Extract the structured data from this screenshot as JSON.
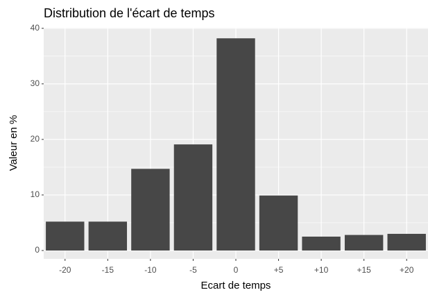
{
  "chart_data": {
    "type": "bar",
    "title": "Distribution de l'écart de temps",
    "x_label": "Ecart de temps",
    "y_label": "Valeur en %",
    "categories": [
      "-20",
      "-15",
      "-10",
      "-5",
      "0",
      "+5",
      "+10",
      "+15",
      "+20"
    ],
    "values": [
      5.2,
      5.2,
      14.7,
      19.1,
      38.2,
      9.9,
      2.5,
      2.8,
      3.0
    ],
    "color": "#474747",
    "ylim": [
      -1.5,
      40.1
    ],
    "yticks": [
      0,
      10,
      20,
      30,
      40
    ],
    "grid": true
  }
}
